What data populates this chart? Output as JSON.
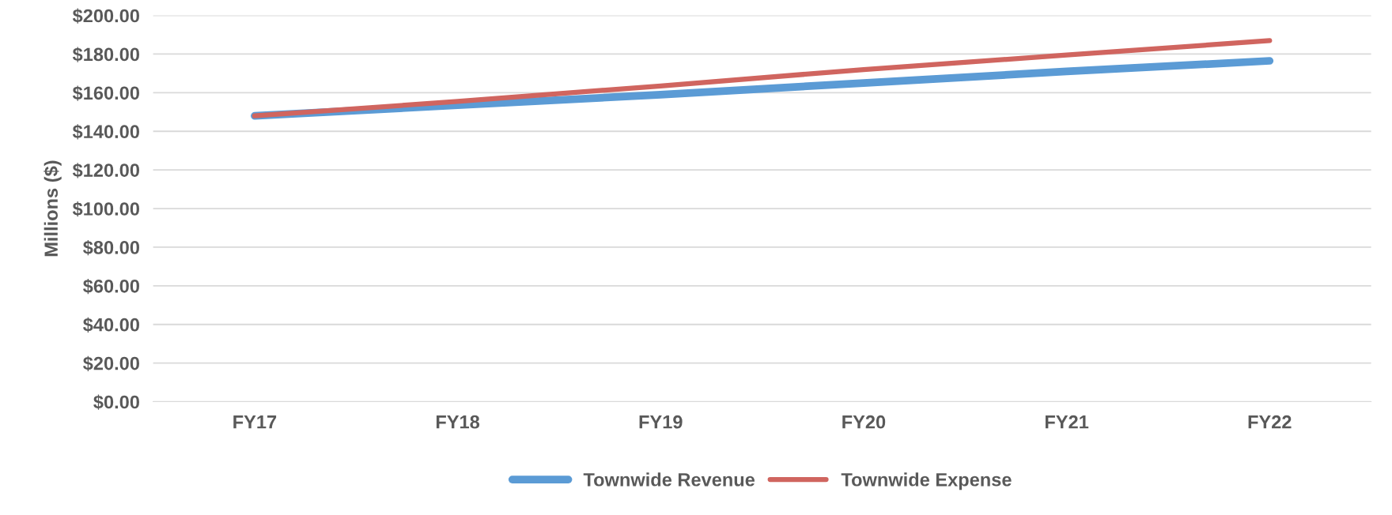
{
  "chart_data": {
    "type": "line",
    "ylabel": "Millions ($)",
    "categories": [
      "FY17",
      "FY18",
      "FY19",
      "FY20",
      "FY21",
      "FY22"
    ],
    "series": [
      {
        "name": "Townwide Revenue",
        "color": "#5b9bd5",
        "values": [
          148,
          153.5,
          159,
          165,
          171,
          176.5
        ]
      },
      {
        "name": "Townwide Expense",
        "color": "#d0655f",
        "values": [
          148,
          155.5,
          163.5,
          172,
          179.5,
          187
        ]
      }
    ],
    "ylim": [
      0,
      200
    ],
    "yticks": [
      {
        "value": 0,
        "label": "$0.00"
      },
      {
        "value": 20,
        "label": "$20.00"
      },
      {
        "value": 40,
        "label": "$40.00"
      },
      {
        "value": 60,
        "label": "$60.00"
      },
      {
        "value": 80,
        "label": "$80.00"
      },
      {
        "value": 100,
        "label": "$100.00"
      },
      {
        "value": 120,
        "label": "$120.00"
      },
      {
        "value": 140,
        "label": "$140.00"
      },
      {
        "value": 160,
        "label": "$160.00"
      },
      {
        "value": 180,
        "label": "$180.00"
      },
      {
        "value": 200,
        "label": "$200.00"
      }
    ],
    "grid": "y",
    "legend": "bottom",
    "marker": "none",
    "line_style": "solid"
  }
}
